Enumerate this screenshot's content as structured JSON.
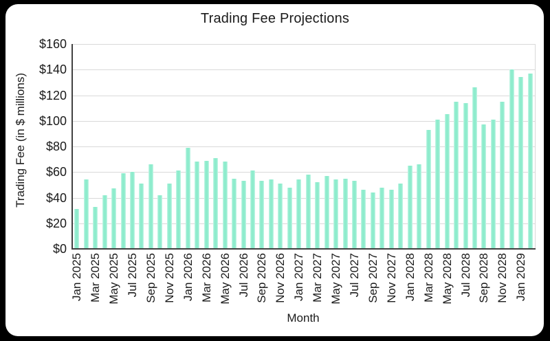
{
  "window": {
    "background_color": "#000000",
    "card_color": "#ffffff"
  },
  "chart_data": {
    "type": "bar",
    "title": "Trading Fee Projections",
    "xlabel": "Month",
    "ylabel": "Trading Fee (in $ millions)",
    "grid": "horizontal",
    "legend": "none",
    "ylim": [
      0,
      160
    ],
    "y_ticks": [
      {
        "label": "$0",
        "value": 0
      },
      {
        "label": "$20",
        "value": 20
      },
      {
        "label": "$40",
        "value": 40
      },
      {
        "label": "$60",
        "value": 60
      },
      {
        "label": "$80",
        "value": 80
      },
      {
        "label": "$100",
        "value": 100
      },
      {
        "label": "$120",
        "value": 120
      },
      {
        "label": "$140",
        "value": 140
      },
      {
        "label": "$160",
        "value": 160
      }
    ],
    "x_tick_labels": [
      "Jan 2025",
      "Mar 2025",
      "May 2025",
      "Jul 2025",
      "Sep 2025",
      "Nov 2025",
      "Jan 2026",
      "Mar 2026",
      "May 2026",
      "Jul 2026",
      "Sep 2026",
      "Nov 2026",
      "Jan 2027",
      "Mar 2027",
      "May 2027",
      "Jul 2027",
      "Sep 2027",
      "Nov 2027",
      "Jan 2028",
      "Mar 2028",
      "May 2028",
      "Jul 2028",
      "Sep 2028",
      "Nov 2028",
      "Jan 2029"
    ],
    "categories": [
      "Jan 2025",
      "Feb 2025",
      "Mar 2025",
      "Apr 2025",
      "May 2025",
      "Jun 2025",
      "Jul 2025",
      "Aug 2025",
      "Sep 2025",
      "Oct 2025",
      "Nov 2025",
      "Dec 2025",
      "Jan 2026",
      "Feb 2026",
      "Mar 2026",
      "Apr 2026",
      "May 2026",
      "Jun 2026",
      "Jul 2026",
      "Aug 2026",
      "Sep 2026",
      "Oct 2026",
      "Nov 2026",
      "Dec 2026",
      "Jan 2027",
      "Feb 2027",
      "Mar 2027",
      "Apr 2027",
      "May 2027",
      "Jun 2027",
      "Jul 2027",
      "Aug 2027",
      "Sep 2027",
      "Oct 2027",
      "Nov 2027",
      "Dec 2027",
      "Jan 2028",
      "Feb 2028",
      "Mar 2028",
      "Apr 2028",
      "May 2028",
      "Jun 2028",
      "Jul 2028",
      "Aug 2028",
      "Sep 2028",
      "Oct 2028",
      "Nov 2028",
      "Dec 2028",
      "Jan 2029",
      "Feb 2029"
    ],
    "values": [
      31,
      54,
      33,
      42,
      47,
      59,
      60,
      51,
      66,
      42,
      51,
      61,
      79,
      68,
      69,
      71,
      68,
      55,
      53,
      61,
      53,
      54,
      51,
      48,
      54,
      58,
      52,
      57,
      54,
      55,
      53,
      46,
      44,
      48,
      46,
      51,
      65,
      66,
      93,
      101,
      105,
      115,
      114,
      126,
      97,
      101,
      115,
      140,
      134,
      137
    ],
    "colors": {
      "bar": "#8eeccd",
      "bar_edge": "#c9f6e8",
      "gridline": "#d9d9d9",
      "axis_line": "#404040",
      "text": "#1a1a1a"
    }
  }
}
